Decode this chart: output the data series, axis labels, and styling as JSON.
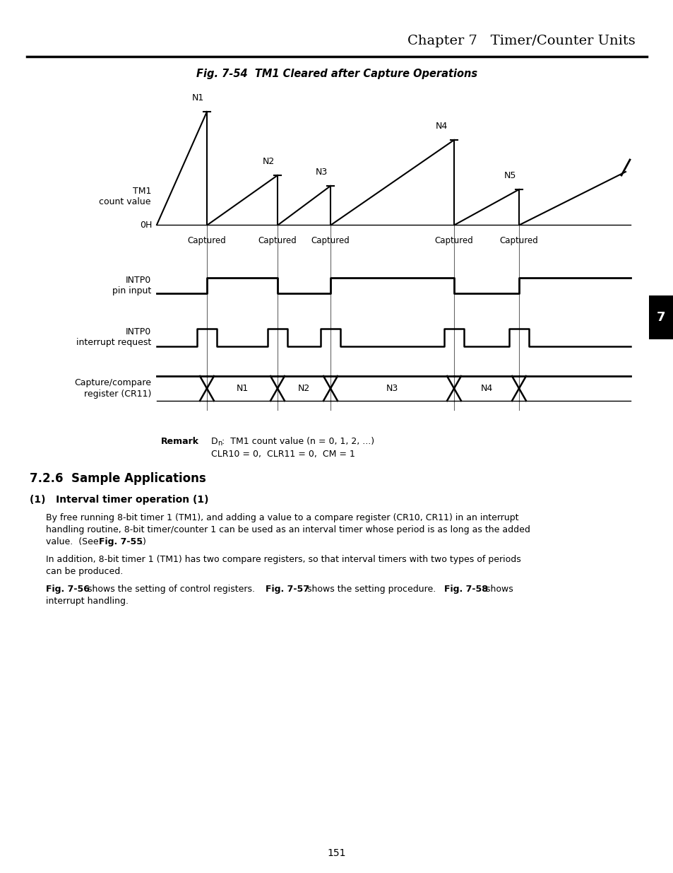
{
  "title": "Chapter 7   Timer/Counter Units",
  "fig_title": "Fig. 7-54  TM1 Cleared after Capture Operations",
  "page_number": "151",
  "chapter_tab": "7",
  "signal_labels": [
    "TM1\ncount value",
    "INTP0\npin input",
    "INTP0\ninterrupt request",
    "Capture/compare\nregister (CR11)"
  ],
  "n_labels_top": [
    "N1",
    "N2",
    "N3",
    "N4",
    "N5"
  ],
  "n_labels_cr": [
    "N1",
    "N2",
    "N3",
    "N4"
  ],
  "oh_label": "0H",
  "section_title": "7.2.6  Sample Applications",
  "subsection_title": "(1)   Interval timer operation (1)"
}
